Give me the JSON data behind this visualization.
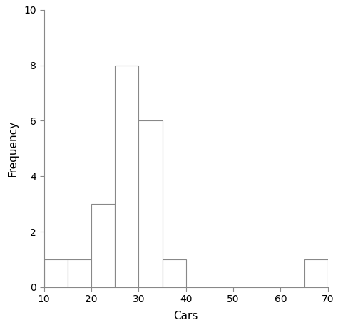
{
  "title": "",
  "xlabel": "Cars",
  "ylabel": "Frequency",
  "xlim": [
    10,
    70
  ],
  "ylim": [
    0,
    10
  ],
  "xticks": [
    10,
    20,
    30,
    40,
    50,
    60,
    70
  ],
  "yticks": [
    0,
    2,
    4,
    6,
    8,
    10
  ],
  "bins_left": [
    10,
    15,
    20,
    25,
    30,
    35,
    65
  ],
  "bins_right": [
    15,
    20,
    25,
    30,
    35,
    40,
    70
  ],
  "freqs": [
    1,
    1,
    3,
    8,
    6,
    1,
    1
  ],
  "bar_color": "#ffffff",
  "bar_edge_color": "#888888",
  "axis_color": "#888888",
  "background_color": "#ffffff",
  "figsize": [
    4.74,
    4.63
  ],
  "dpi": 100,
  "tick_fontsize": 10,
  "label_fontsize": 11
}
